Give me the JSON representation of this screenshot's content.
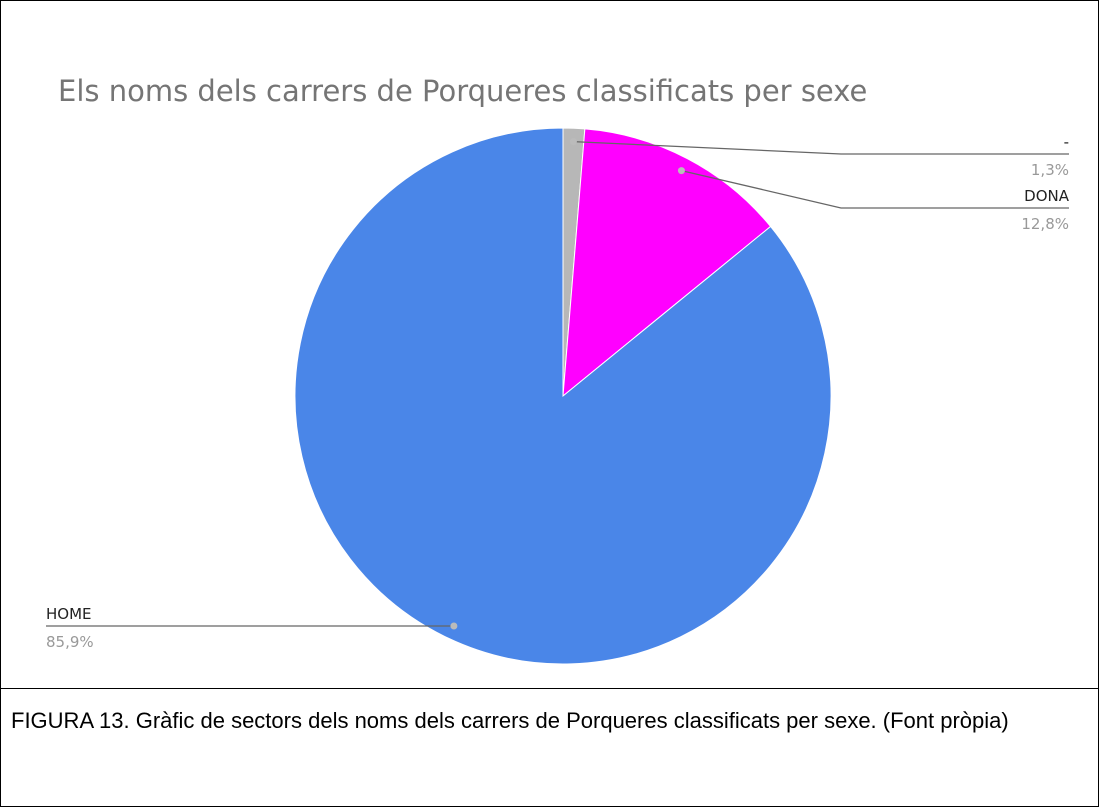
{
  "chart_data": {
    "type": "pie",
    "title": "Els noms dels carrers de Porqueres classificats per sexe",
    "categories": [
      "-",
      "DONA",
      "HOME"
    ],
    "values": [
      1.3,
      12.8,
      85.9
    ],
    "value_labels": [
      "1,3%",
      "12,8%",
      "85,9%"
    ],
    "colors": [
      "#b7b7b7",
      "#ff00ff",
      "#4a86e8"
    ]
  },
  "caption": "FIGURA 13. Gràfic de sectors dels noms dels carrers de Porqueres classificats per sexe. (Font pròpia)"
}
